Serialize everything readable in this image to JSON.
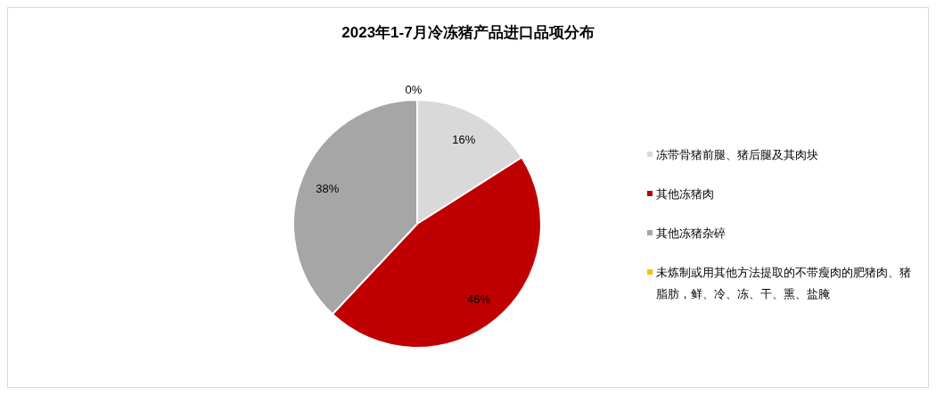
{
  "chart_data": {
    "type": "pie",
    "title": "2023年1-7月冷冻猪产品进口品项分布",
    "categories": [
      "冻带骨猪前腿、猪后腿及其肉块",
      "其他冻猪肉",
      "其他冻猪杂碎",
      "未炼制或用其他方法提取的不带瘦肉的肥猪肉、猪脂肪，鲜、冷、冻、干、熏、盐腌"
    ],
    "values": [
      16,
      46,
      38,
      0
    ],
    "colors": [
      "#d9d9d9",
      "#c00000",
      "#a6a6a6",
      "#ffc000"
    ],
    "value_labels": [
      "16%",
      "46%",
      "38%",
      "0%"
    ],
    "legend": "right"
  }
}
